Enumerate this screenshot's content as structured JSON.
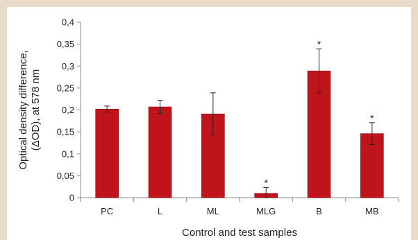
{
  "chart_data": {
    "type": "bar",
    "categories": [
      "PC",
      "L",
      "ML",
      "MLG",
      "B",
      "MB"
    ],
    "values": [
      0.202,
      0.207,
      0.191,
      0.01,
      0.289,
      0.146
    ],
    "errors": [
      0.007,
      0.015,
      0.048,
      0.013,
      0.05,
      0.025
    ],
    "annotations": [
      "",
      "",
      "",
      "*",
      "*",
      "*"
    ],
    "xlabel": "Control and test samples",
    "ylabel_line1": "Optical density difference,",
    "ylabel_line2": "(ΔOD), at 578 nm",
    "ylim": [
      0,
      0.4
    ],
    "yticks": [
      0,
      0.05,
      0.1,
      0.15,
      0.2,
      0.25,
      0.3,
      0.35,
      0.4
    ],
    "ytick_labels": [
      "0",
      "0,05",
      "0,1",
      "0,15",
      "0,2",
      "0,25",
      "0,3",
      "0,35",
      "0,4"
    ],
    "bar_color": "#c0141c",
    "grid": false,
    "legend": "none"
  }
}
